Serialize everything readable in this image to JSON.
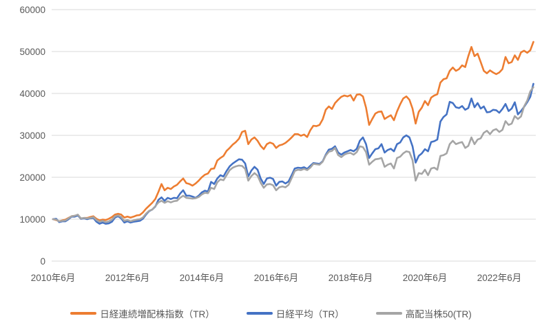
{
  "chart_data": {
    "type": "line",
    "title": "",
    "xlabel": "",
    "ylabel": "",
    "x_unit": "months from 2010-06 to 2023-05",
    "x_tick_labels": [
      "2010年6月",
      "2012年6月",
      "2014年6月",
      "2016年6月",
      "2018年6月",
      "2020年6月",
      "2022年6月"
    ],
    "x_tick_month_indices": [
      0,
      24,
      48,
      72,
      96,
      120,
      144
    ],
    "y_ticks": [
      0,
      10000,
      20000,
      30000,
      40000,
      50000,
      60000
    ],
    "ylim": [
      0,
      60000
    ],
    "grid": "horizontal",
    "legend_position": "bottom",
    "colors": {
      "background": "#FFFFFF",
      "gridline": "#D9D9D9",
      "axis_label": "#595959"
    },
    "series": [
      {
        "name": "日経連続増配株指数（TR）",
        "color": "#ED7D31",
        "values": [
          10000,
          9800,
          9500,
          9700,
          9900,
          10300,
          10700,
          10800,
          11000,
          10100,
          10300,
          10300,
          10500,
          10700,
          10100,
          9700,
          9900,
          9800,
          10100,
          10500,
          11100,
          11300,
          11100,
          10400,
          10600,
          10400,
          10600,
          10900,
          11000,
          11600,
          12500,
          13200,
          13900,
          14800,
          16500,
          18400,
          16900,
          17500,
          17200,
          17800,
          18200,
          19000,
          19700,
          18600,
          18400,
          18000,
          18500,
          19200,
          20000,
          20600,
          20900,
          22000,
          22100,
          24000,
          24600,
          25100,
          26300,
          27000,
          27800,
          28400,
          29200,
          30800,
          31100,
          27900,
          29000,
          29500,
          28700,
          27500,
          26700,
          27900,
          28300,
          28000,
          27000,
          27600,
          27800,
          28200,
          28800,
          29500,
          30300,
          30300,
          29900,
          30200,
          29600,
          31200,
          32300,
          32200,
          32500,
          33800,
          36100,
          36900,
          36300,
          37700,
          38500,
          39200,
          39500,
          39300,
          39600,
          38300,
          39700,
          39800,
          39300,
          36600,
          32500,
          33900,
          35200,
          35600,
          35700,
          33900,
          34400,
          34800,
          33600,
          35700,
          37400,
          38800,
          39300,
          38500,
          36400,
          32800,
          35600,
          36600,
          38200,
          37200,
          39000,
          39500,
          39800,
          42600,
          43400,
          43600,
          45400,
          46200,
          45400,
          45800,
          46700,
          46300,
          48900,
          51100,
          48900,
          49500,
          47500,
          45400,
          44800,
          45500,
          45000,
          44600,
          45000,
          45800,
          48700,
          47200,
          47500,
          49100,
          48000,
          49800,
          50200,
          49700,
          50300,
          52300
        ]
      },
      {
        "name": "日経平均（TR）",
        "color": "#4472C4",
        "values": [
          10000,
          10100,
          9300,
          9500,
          9500,
          10000,
          10600,
          10600,
          10900,
          10100,
          10200,
          10000,
          10200,
          10300,
          9400,
          8900,
          9200,
          8900,
          9000,
          9400,
          10400,
          10700,
          10200,
          9200,
          9500,
          9200,
          9400,
          9500,
          9600,
          10100,
          11100,
          11900,
          12300,
          13000,
          14600,
          15200,
          14400,
          15100,
          14800,
          15100,
          15000,
          16100,
          16900,
          15600,
          15600,
          15400,
          15100,
          15600,
          16400,
          16800,
          16600,
          18900,
          18400,
          19700,
          20500,
          20200,
          21500,
          22600,
          23300,
          23800,
          24300,
          24200,
          23300,
          20200,
          21600,
          22500,
          21800,
          19700,
          18400,
          19700,
          19900,
          19600,
          18000,
          18900,
          19000,
          18500,
          19000,
          20500,
          22100,
          22300,
          22200,
          22400,
          22000,
          22700,
          23400,
          23300,
          23200,
          23800,
          25400,
          26600,
          26800,
          27400,
          25900,
          25400,
          25900,
          26200,
          26500,
          26200,
          26800,
          28700,
          29500,
          27900,
          24600,
          25700,
          26700,
          26900,
          27900,
          25900,
          26500,
          26800,
          26200,
          27900,
          28300,
          29500,
          30000,
          29500,
          27400,
          23500,
          25100,
          25700,
          26700,
          26200,
          28400,
          28600,
          29000,
          33300,
          34400,
          35000,
          38000,
          37700,
          36700,
          36500,
          37000,
          36100,
          36500,
          38800,
          36700,
          37700,
          36400,
          36900,
          35500,
          35600,
          36100,
          36000,
          35400,
          36300,
          37500,
          35800,
          36400,
          37900,
          35000,
          35800,
          36800,
          37900,
          39200,
          42300
        ]
      },
      {
        "name": "高配当株50(TR)",
        "color": "#A5A5A5",
        "values": [
          10000,
          9900,
          9500,
          9600,
          9700,
          10200,
          10700,
          10800,
          11100,
          10200,
          10300,
          10200,
          10300,
          10500,
          9800,
          9400,
          9600,
          9300,
          9500,
          9900,
          10700,
          10900,
          10500,
          9600,
          9800,
          9500,
          9700,
          9900,
          10000,
          10400,
          11300,
          12000,
          12300,
          13100,
          14000,
          14400,
          13900,
          14300,
          14000,
          14300,
          14400,
          15100,
          15600,
          15100,
          15000,
          14900,
          15000,
          15300,
          15900,
          16300,
          16200,
          17500,
          17200,
          18800,
          19500,
          19300,
          20500,
          21700,
          22300,
          22600,
          22800,
          22700,
          22000,
          19200,
          20300,
          21000,
          20400,
          18700,
          17500,
          18300,
          18400,
          18100,
          16900,
          17600,
          17800,
          17600,
          18200,
          19800,
          21500,
          21800,
          21700,
          22000,
          21700,
          22300,
          23200,
          23100,
          23000,
          23700,
          25200,
          26100,
          26300,
          27000,
          25300,
          24800,
          25400,
          25700,
          25800,
          25400,
          26000,
          27400,
          27200,
          26000,
          23000,
          23700,
          24300,
          24400,
          24600,
          22500,
          23000,
          23300,
          22100,
          24600,
          24900,
          25700,
          26200,
          26000,
          24100,
          19200,
          21000,
          20800,
          21800,
          20500,
          22100,
          22300,
          21800,
          25100,
          25300,
          25700,
          27900,
          28700,
          27900,
          28200,
          28400,
          27000,
          27500,
          29500,
          27900,
          29000,
          29300,
          30600,
          31100,
          30300,
          31200,
          31500,
          30800,
          31300,
          33400,
          32500,
          32800,
          34600,
          33900,
          34500,
          36900,
          38300,
          40500,
          41500
        ]
      }
    ]
  }
}
